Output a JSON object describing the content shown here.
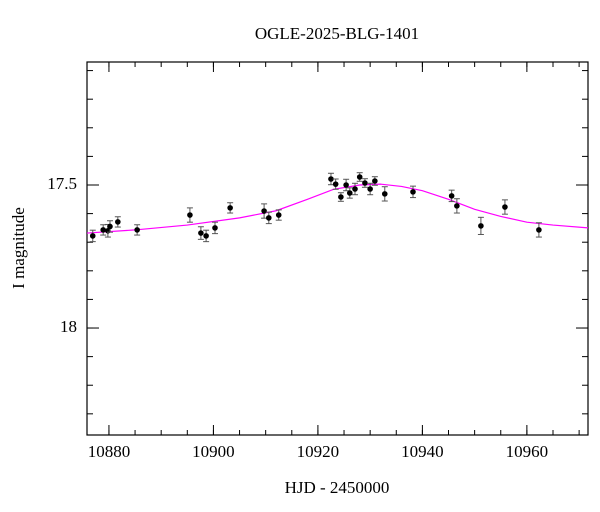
{
  "chart_data": {
    "type": "scatter",
    "title": "OGLE-2025-BLG-1401",
    "x_label": "HJD - 2450000",
    "y_label": "I magnitude",
    "xlim": [
      10875.8,
      10971.7
    ],
    "xticks": [
      10880,
      10900,
      10920,
      10940,
      10960
    ],
    "xticks_minor": [
      10880,
      10885,
      10890,
      10895,
      10900,
      10905,
      10910,
      10915,
      10920,
      10925,
      10930,
      10935,
      10940,
      10945,
      10950,
      10955,
      10960,
      10965,
      10970
    ],
    "ylim": [
      17.07,
      18.374
    ],
    "y_inverted": true,
    "yticks": [
      17.5,
      18
    ],
    "yticks_minor": [
      17.1,
      17.2,
      17.3,
      17.4,
      17.5,
      17.6,
      17.7,
      17.8,
      17.9,
      18,
      18.1,
      18.2,
      18.3
    ],
    "color": "#000000",
    "error_color": "#555555",
    "x": [
      10876.9,
      10878.9,
      10879.8,
      10880.2,
      10881.7,
      10885.4,
      10895.5,
      10897.6,
      10898.6,
      10900.3,
      10903.2,
      10909.7,
      10910.6,
      10912.5,
      10922.5,
      10923.4,
      10924.4,
      10925.4,
      10926.1,
      10927.1,
      10928.0,
      10929.0,
      10930.0,
      10930.9,
      10932.8,
      10938.2,
      10945.6,
      10946.6,
      10951.2,
      10955.8,
      10962.3
    ],
    "values": [
      17.678,
      17.657,
      17.66,
      17.645,
      17.629,
      17.657,
      17.605,
      17.668,
      17.678,
      17.65,
      17.58,
      17.591,
      17.615,
      17.605,
      17.479,
      17.497,
      17.542,
      17.5,
      17.528,
      17.514,
      17.472,
      17.493,
      17.514,
      17.486,
      17.531,
      17.524,
      17.538,
      17.573,
      17.643,
      17.577,
      17.657
    ],
    "errors": [
      0.02,
      0.018,
      0.022,
      0.02,
      0.018,
      0.018,
      0.025,
      0.022,
      0.02,
      0.02,
      0.018,
      0.025,
      0.02,
      0.018,
      0.02,
      0.018,
      0.015,
      0.02,
      0.018,
      0.02,
      0.015,
      0.015,
      0.02,
      0.015,
      0.025,
      0.02,
      0.02,
      0.025,
      0.03,
      0.025,
      0.025
    ],
    "model": {
      "color": "#ff00ff",
      "x": [
        10875.8,
        10885,
        10895,
        10905,
        10912,
        10918,
        10923,
        10928,
        10932,
        10936,
        10940,
        10945,
        10950,
        10955,
        10960,
        10965,
        10971.7
      ],
      "values": [
        17.668,
        17.657,
        17.64,
        17.615,
        17.59,
        17.55,
        17.515,
        17.5,
        17.497,
        17.505,
        17.52,
        17.55,
        17.585,
        17.61,
        17.63,
        17.64,
        17.65
      ]
    }
  }
}
